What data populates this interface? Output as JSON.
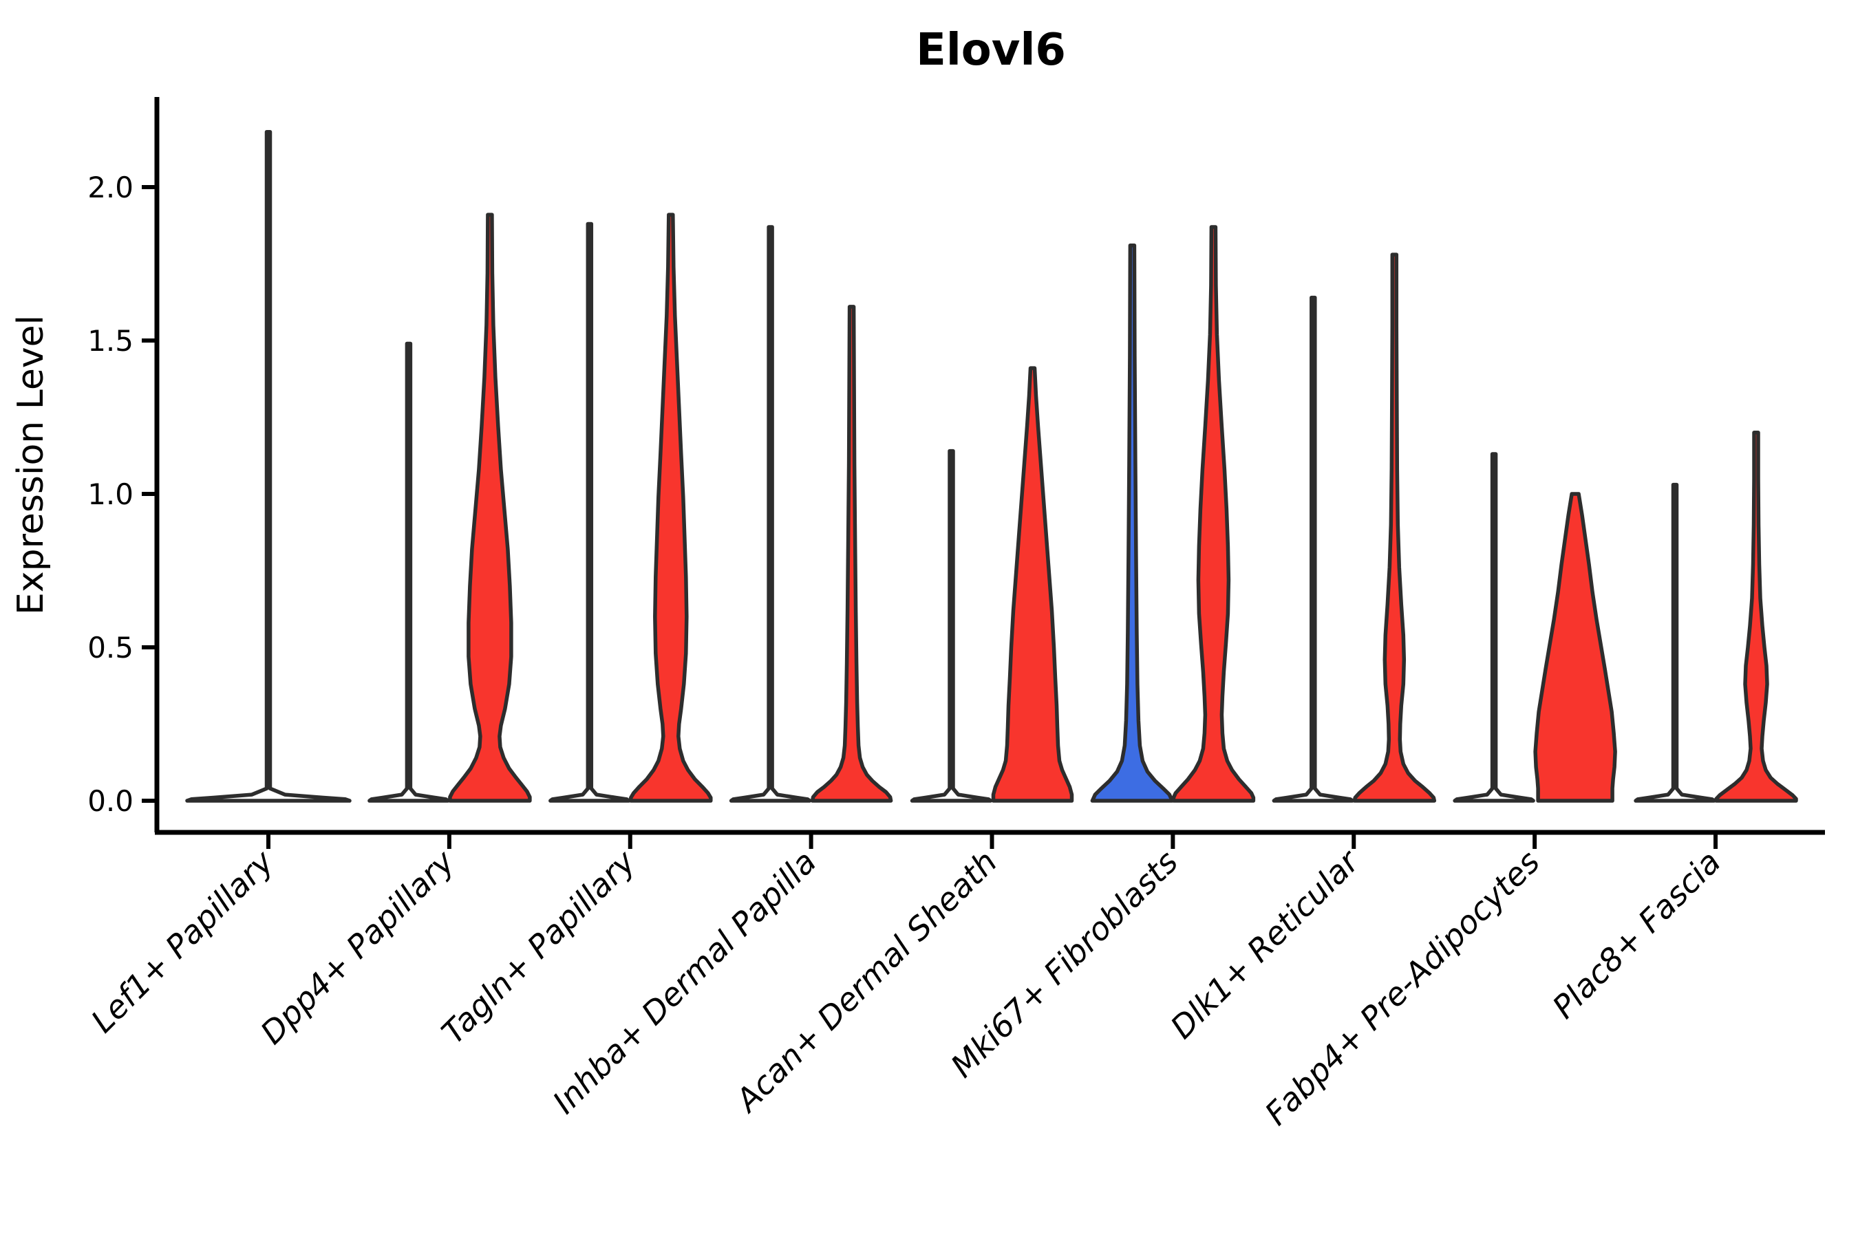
{
  "title": "Elovl6",
  "colors": {
    "red": "#F8352D",
    "blue": "#3D6DE3",
    "edge": "#2D2D2D",
    "axis": "#000000"
  },
  "chart_data": {
    "type": "violin",
    "title": "Elovl6",
    "xlabel": "",
    "ylabel": "Expression Level",
    "ylim": [
      -0.103,
      2.294
    ],
    "yticks": [
      0.0,
      0.5,
      1.0,
      1.5,
      2.0
    ],
    "ytick_labels": [
      "0.0",
      "0.5",
      "1.0",
      "1.5",
      "2.0"
    ],
    "grid": false,
    "legend": "none",
    "categories": [
      "Lef1+ Papillary",
      "Dpp4+ Papillary",
      "Tagln+ Papillary",
      "Inhba+ Dermal Papilla",
      "Acan+ Dermal Sheath",
      "Mki67+ Fibroblasts",
      "Dlk1+ Reticular",
      "Fabp4+ Pre-Adipocytes",
      "Plac8+ Fascia"
    ],
    "violins": [
      {
        "category": "Lef1+ Papillary",
        "pos": "center",
        "fill": "white",
        "max_expression": 2.18,
        "profile": [
          [
            2.18,
            2.5
          ],
          [
            0.04,
            2.5
          ],
          [
            0.02,
            24
          ],
          [
            0.01,
            80
          ],
          [
            0.005,
            112
          ],
          [
            0,
            118
          ]
        ]
      },
      {
        "category": "Dpp4+ Papillary",
        "pos": "left",
        "fill": "white",
        "max_expression": 1.49,
        "profile": [
          [
            1.49,
            2.5
          ],
          [
            0.04,
            2.5
          ],
          [
            0.02,
            10
          ],
          [
            0.01,
            38
          ],
          [
            0.005,
            54
          ],
          [
            0,
            57
          ]
        ]
      },
      {
        "category": "Dpp4+ Papillary",
        "pos": "right",
        "fill": "red",
        "max_expression": 1.91,
        "profile": [
          [
            1.91,
            3
          ],
          [
            1.72,
            3.5
          ],
          [
            1.55,
            5
          ],
          [
            1.38,
            8
          ],
          [
            1.22,
            12
          ],
          [
            1.08,
            16
          ],
          [
            0.95,
            21
          ],
          [
            0.82,
            26
          ],
          [
            0.7,
            29
          ],
          [
            0.58,
            31
          ],
          [
            0.47,
            31
          ],
          [
            0.38,
            28
          ],
          [
            0.3,
            22
          ],
          [
            0.245,
            16
          ],
          [
            0.21,
            14
          ],
          [
            0.175,
            15
          ],
          [
            0.14,
            20
          ],
          [
            0.105,
            28
          ],
          [
            0.075,
            38
          ],
          [
            0.05,
            47
          ],
          [
            0.03,
            54
          ],
          [
            0.012,
            58
          ],
          [
            0,
            58
          ]
        ]
      },
      {
        "category": "Tagln+ Papillary",
        "pos": "left",
        "fill": "white",
        "max_expression": 1.88,
        "profile": [
          [
            1.88,
            2.5
          ],
          [
            0.04,
            2.5
          ],
          [
            0.02,
            10
          ],
          [
            0.01,
            38
          ],
          [
            0.005,
            54
          ],
          [
            0,
            57
          ]
        ]
      },
      {
        "category": "Tagln+ Papillary",
        "pos": "right",
        "fill": "red",
        "max_expression": 1.91,
        "profile": [
          [
            1.91,
            3
          ],
          [
            1.74,
            4
          ],
          [
            1.58,
            6
          ],
          [
            1.43,
            9
          ],
          [
            1.28,
            12
          ],
          [
            1.13,
            15
          ],
          [
            0.99,
            18
          ],
          [
            0.86,
            20
          ],
          [
            0.73,
            22
          ],
          [
            0.6,
            23
          ],
          [
            0.48,
            22
          ],
          [
            0.38,
            19
          ],
          [
            0.3,
            15
          ],
          [
            0.25,
            12
          ],
          [
            0.21,
            11
          ],
          [
            0.17,
            13
          ],
          [
            0.13,
            18
          ],
          [
            0.1,
            25
          ],
          [
            0.07,
            35
          ],
          [
            0.045,
            46
          ],
          [
            0.025,
            54
          ],
          [
            0.01,
            58
          ],
          [
            0,
            58
          ]
        ]
      },
      {
        "category": "Inhba+ Dermal Papilla",
        "pos": "left",
        "fill": "white",
        "max_expression": 1.87,
        "profile": [
          [
            1.87,
            2.5
          ],
          [
            0.04,
            2.5
          ],
          [
            0.02,
            10
          ],
          [
            0.01,
            38
          ],
          [
            0.005,
            54
          ],
          [
            0,
            57
          ]
        ]
      },
      {
        "category": "Inhba+ Dermal Papilla",
        "pos": "right",
        "fill": "red",
        "max_expression": 1.61,
        "profile": [
          [
            1.61,
            3
          ],
          [
            1.35,
            3.5
          ],
          [
            1.1,
            4
          ],
          [
            0.85,
            5
          ],
          [
            0.62,
            6
          ],
          [
            0.45,
            7
          ],
          [
            0.32,
            8
          ],
          [
            0.24,
            9
          ],
          [
            0.18,
            10
          ],
          [
            0.14,
            12
          ],
          [
            0.11,
            16
          ],
          [
            0.085,
            22
          ],
          [
            0.065,
            30
          ],
          [
            0.045,
            40
          ],
          [
            0.028,
            50
          ],
          [
            0.012,
            56
          ],
          [
            0,
            57
          ]
        ]
      },
      {
        "category": "Acan+ Dermal Sheath",
        "pos": "left",
        "fill": "white",
        "max_expression": 1.14,
        "profile": [
          [
            1.14,
            2.5
          ],
          [
            0.04,
            2.5
          ],
          [
            0.02,
            10
          ],
          [
            0.01,
            38
          ],
          [
            0.005,
            54
          ],
          [
            0,
            57
          ]
        ]
      },
      {
        "category": "Acan+ Dermal Sheath",
        "pos": "right",
        "fill": "red",
        "max_expression": 1.41,
        "profile": [
          [
            1.41,
            3
          ],
          [
            1.32,
            5
          ],
          [
            1.22,
            8
          ],
          [
            1.1,
            12
          ],
          [
            0.98,
            16
          ],
          [
            0.86,
            20
          ],
          [
            0.74,
            24
          ],
          [
            0.62,
            28
          ],
          [
            0.5,
            31
          ],
          [
            0.4,
            33
          ],
          [
            0.31,
            35
          ],
          [
            0.24,
            36
          ],
          [
            0.18,
            37
          ],
          [
            0.13,
            39
          ],
          [
            0.1,
            43
          ],
          [
            0.07,
            49
          ],
          [
            0.045,
            54
          ],
          [
            0.02,
            57
          ],
          [
            0,
            57
          ]
        ]
      },
      {
        "category": "Mki67+ Fibroblasts",
        "pos": "left",
        "fill": "blue",
        "max_expression": 1.81,
        "profile": [
          [
            1.81,
            3
          ],
          [
            1.45,
            3.5
          ],
          [
            1.1,
            4.5
          ],
          [
            0.8,
            5.5
          ],
          [
            0.55,
            6.5
          ],
          [
            0.38,
            7.5
          ],
          [
            0.26,
            9
          ],
          [
            0.18,
            11
          ],
          [
            0.13,
            15
          ],
          [
            0.095,
            22
          ],
          [
            0.065,
            33
          ],
          [
            0.04,
            45
          ],
          [
            0.02,
            54
          ],
          [
            0,
            58
          ]
        ]
      },
      {
        "category": "Mki67+ Fibroblasts",
        "pos": "right",
        "fill": "red",
        "max_expression": 1.87,
        "profile": [
          [
            1.87,
            3
          ],
          [
            1.68,
            3.5
          ],
          [
            1.52,
            5
          ],
          [
            1.37,
            8
          ],
          [
            1.22,
            12
          ],
          [
            1.08,
            16
          ],
          [
            0.95,
            19
          ],
          [
            0.83,
            21
          ],
          [
            0.72,
            22
          ],
          [
            0.61,
            21
          ],
          [
            0.51,
            18
          ],
          [
            0.42,
            15
          ],
          [
            0.34,
            13
          ],
          [
            0.28,
            12
          ],
          [
            0.22,
            13
          ],
          [
            0.17,
            15
          ],
          [
            0.13,
            20
          ],
          [
            0.1,
            27
          ],
          [
            0.07,
            37
          ],
          [
            0.045,
            47
          ],
          [
            0.025,
            55
          ],
          [
            0.01,
            58
          ],
          [
            0,
            58
          ]
        ]
      },
      {
        "category": "Dlk1+ Reticular",
        "pos": "left",
        "fill": "white",
        "max_expression": 1.64,
        "profile": [
          [
            1.64,
            2.5
          ],
          [
            0.04,
            2.5
          ],
          [
            0.02,
            10
          ],
          [
            0.01,
            38
          ],
          [
            0.005,
            54
          ],
          [
            0,
            57
          ]
        ]
      },
      {
        "category": "Dlk1+ Reticular",
        "pos": "right",
        "fill": "red",
        "max_expression": 1.78,
        "profile": [
          [
            1.78,
            3
          ],
          [
            1.55,
            3
          ],
          [
            1.3,
            3.5
          ],
          [
            1.08,
            4
          ],
          [
            0.9,
            5
          ],
          [
            0.76,
            7
          ],
          [
            0.64,
            10
          ],
          [
            0.54,
            13
          ],
          [
            0.46,
            14
          ],
          [
            0.38,
            13
          ],
          [
            0.31,
            10
          ],
          [
            0.25,
            8.5
          ],
          [
            0.2,
            8
          ],
          [
            0.16,
            9
          ],
          [
            0.12,
            13
          ],
          [
            0.09,
            20
          ],
          [
            0.065,
            30
          ],
          [
            0.045,
            41
          ],
          [
            0.025,
            51
          ],
          [
            0.01,
            57
          ],
          [
            0,
            58
          ]
        ]
      },
      {
        "category": "Fabp4+ Pre-Adipocytes",
        "pos": "left",
        "fill": "white",
        "max_expression": 1.13,
        "profile": [
          [
            1.13,
            2.5
          ],
          [
            0.04,
            2.5
          ],
          [
            0.02,
            10
          ],
          [
            0.01,
            38
          ],
          [
            0.005,
            54
          ],
          [
            0,
            57
          ]
        ]
      },
      {
        "category": "Fabp4+ Pre-Adipocytes",
        "pos": "right",
        "fill": "red",
        "max_expression": 1.0,
        "profile": [
          [
            1.0,
            5
          ],
          [
            0.93,
            10
          ],
          [
            0.85,
            15
          ],
          [
            0.77,
            20
          ],
          [
            0.68,
            25
          ],
          [
            0.59,
            31
          ],
          [
            0.51,
            37
          ],
          [
            0.43,
            43
          ],
          [
            0.36,
            48
          ],
          [
            0.29,
            53
          ],
          [
            0.22,
            56
          ],
          [
            0.16,
            58
          ],
          [
            0.11,
            57
          ],
          [
            0.07,
            55
          ],
          [
            0.04,
            54
          ],
          [
            0.015,
            54
          ],
          [
            0,
            54
          ]
        ]
      },
      {
        "category": "Plac8+ Fascia",
        "pos": "left",
        "fill": "white",
        "max_expression": 1.03,
        "profile": [
          [
            1.03,
            2.5
          ],
          [
            0.04,
            2.5
          ],
          [
            0.02,
            10
          ],
          [
            0.01,
            38
          ],
          [
            0.005,
            54
          ],
          [
            0,
            57
          ]
        ]
      },
      {
        "category": "Plac8+ Fascia",
        "pos": "right",
        "fill": "red",
        "max_expression": 1.2,
        "profile": [
          [
            1.2,
            3
          ],
          [
            1.05,
            3
          ],
          [
            0.9,
            3.5
          ],
          [
            0.77,
            4.5
          ],
          [
            0.66,
            6
          ],
          [
            0.57,
            9
          ],
          [
            0.5,
            12
          ],
          [
            0.44,
            15
          ],
          [
            0.38,
            16
          ],
          [
            0.32,
            14
          ],
          [
            0.26,
            11
          ],
          [
            0.21,
            9
          ],
          [
            0.17,
            8
          ],
          [
            0.13,
            10
          ],
          [
            0.1,
            14
          ],
          [
            0.075,
            21
          ],
          [
            0.055,
            31
          ],
          [
            0.035,
            43
          ],
          [
            0.018,
            53
          ],
          [
            0.006,
            58
          ],
          [
            0,
            58
          ]
        ]
      }
    ]
  }
}
